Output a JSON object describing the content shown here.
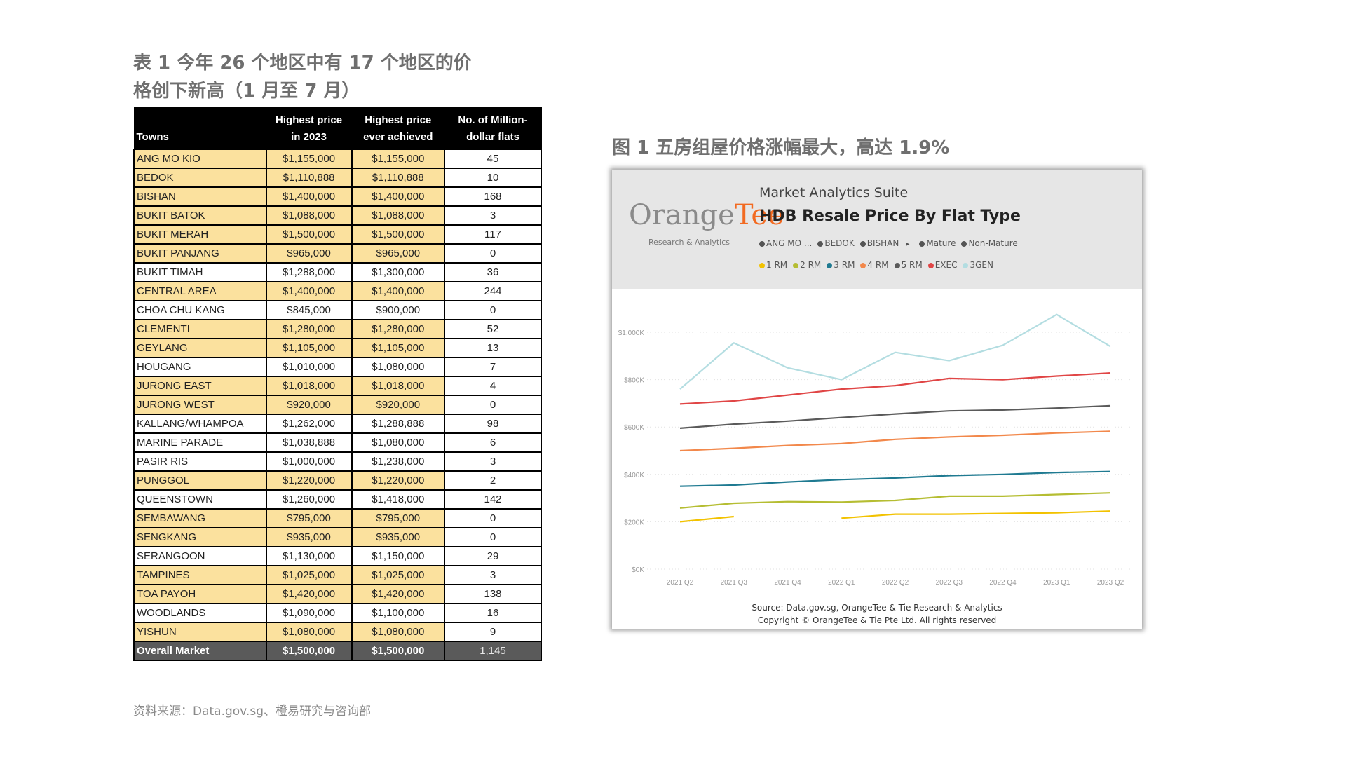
{
  "table_title": [
    "表 1 今年 26 个地区中有 17 个地区的价",
    "格创下新高（1 月至 7 月）"
  ],
  "table": {
    "headers": {
      "town": "Towns",
      "price_2023": [
        "Highest price",
        "in 2023"
      ],
      "price_ever": [
        "Highest price",
        "ever achieved"
      ],
      "million": [
        "No. of Million-",
        "dollar flats"
      ]
    },
    "rows": [
      {
        "town": "ANG MO KIO",
        "price_2023": "$1,155,000",
        "price_ever": "$1,155,000",
        "million": "45",
        "highlight": true
      },
      {
        "town": "BEDOK",
        "price_2023": "$1,110,888",
        "price_ever": "$1,110,888",
        "million": "10",
        "highlight": true
      },
      {
        "town": "BISHAN",
        "price_2023": "$1,400,000",
        "price_ever": "$1,400,000",
        "million": "168",
        "highlight": true
      },
      {
        "town": "BUKIT BATOK",
        "price_2023": "$1,088,000",
        "price_ever": "$1,088,000",
        "million": "3",
        "highlight": true
      },
      {
        "town": "BUKIT MERAH",
        "price_2023": "$1,500,000",
        "price_ever": "$1,500,000",
        "million": "117",
        "highlight": true
      },
      {
        "town": "BUKIT PANJANG",
        "price_2023": "$965,000",
        "price_ever": "$965,000",
        "million": "0",
        "highlight": true
      },
      {
        "town": "BUKIT TIMAH",
        "price_2023": "$1,288,000",
        "price_ever": "$1,300,000",
        "million": "36",
        "highlight": false
      },
      {
        "town": "CENTRAL AREA",
        "price_2023": "$1,400,000",
        "price_ever": "$1,400,000",
        "million": "244",
        "highlight": true
      },
      {
        "town": "CHOA CHU KANG",
        "price_2023": "$845,000",
        "price_ever": "$900,000",
        "million": "0",
        "highlight": false
      },
      {
        "town": "CLEMENTI",
        "price_2023": "$1,280,000",
        "price_ever": "$1,280,000",
        "million": "52",
        "highlight": true
      },
      {
        "town": "GEYLANG",
        "price_2023": "$1,105,000",
        "price_ever": "$1,105,000",
        "million": "13",
        "highlight": true
      },
      {
        "town": "HOUGANG",
        "price_2023": "$1,010,000",
        "price_ever": "$1,080,000",
        "million": "7",
        "highlight": false
      },
      {
        "town": "JURONG EAST",
        "price_2023": "$1,018,000",
        "price_ever": "$1,018,000",
        "million": "4",
        "highlight": true
      },
      {
        "town": "JURONG WEST",
        "price_2023": "$920,000",
        "price_ever": "$920,000",
        "million": "0",
        "highlight": true
      },
      {
        "town": "KALLANG/WHAMPOA",
        "price_2023": "$1,262,000",
        "price_ever": "$1,288,888",
        "million": "98",
        "highlight": false
      },
      {
        "town": "MARINE PARADE",
        "price_2023": "$1,038,888",
        "price_ever": "$1,080,000",
        "million": "6",
        "highlight": false
      },
      {
        "town": "PASIR RIS",
        "price_2023": "$1,000,000",
        "price_ever": "$1,238,000",
        "million": "3",
        "highlight": false
      },
      {
        "town": "PUNGGOL",
        "price_2023": "$1,220,000",
        "price_ever": "$1,220,000",
        "million": "2",
        "highlight": true
      },
      {
        "town": "QUEENSTOWN",
        "price_2023": "$1,260,000",
        "price_ever": "$1,418,000",
        "million": "142",
        "highlight": false
      },
      {
        "town": "SEMBAWANG",
        "price_2023": "$795,000",
        "price_ever": "$795,000",
        "million": "0",
        "highlight": true
      },
      {
        "town": "SENGKANG",
        "price_2023": "$935,000",
        "price_ever": "$935,000",
        "million": "0",
        "highlight": true
      },
      {
        "town": "SERANGOON",
        "price_2023": "$1,130,000",
        "price_ever": "$1,150,000",
        "million": "29",
        "highlight": false
      },
      {
        "town": "TAMPINES",
        "price_2023": "$1,025,000",
        "price_ever": "$1,025,000",
        "million": "3",
        "highlight": true
      },
      {
        "town": "TOA PAYOH",
        "price_2023": "$1,420,000",
        "price_ever": "$1,420,000",
        "million": "138",
        "highlight": true
      },
      {
        "town": "WOODLANDS",
        "price_2023": "$1,090,000",
        "price_ever": "$1,100,000",
        "million": "16",
        "highlight": false
      },
      {
        "town": "YISHUN",
        "price_2023": "$1,080,000",
        "price_ever": "$1,080,000",
        "million": "9",
        "highlight": true
      }
    ],
    "total": {
      "town": "Overall Market",
      "price_2023": "$1,500,000",
      "price_ever": "$1,500,000",
      "million": "1,145"
    },
    "colors": {
      "highlight": "#fbe19e",
      "header": "#000000",
      "total": "#5a5a5a"
    }
  },
  "table_source": "资料来源：Data.gov.sg、橙易研究与咨询部",
  "figure_title": "图 1 五房组屋价格涨幅最大，高达 1.9%",
  "chart_card": {
    "logo_main": "Orange",
    "logo_accent": "Tee",
    "logo_sub": "Research & Analytics",
    "suite": "Market Analytics Suite",
    "filters": [
      {
        "label": "ANG MO ...",
        "color": "#555555"
      },
      {
        "label": "BEDOK",
        "color": "#555555"
      },
      {
        "label": "BISHAN",
        "color": "#555555",
        "arrow": "▸"
      },
      {
        "label": "Mature",
        "color": "#555555"
      },
      {
        "label": "Non-Mature",
        "color": "#555555"
      }
    ],
    "source_lines": [
      "Source: Data.gov.sg, OrangeTee & Tie Research & Analytics",
      "Copyright © OrangeTee & Tie Pte Ltd. All rights reserved"
    ]
  },
  "chart_data": {
    "type": "line",
    "title": "HDB Resale Price By Flat Type",
    "x": [
      "2021 Q2",
      "2021 Q3",
      "2021 Q4",
      "2022 Q1",
      "2022 Q2",
      "2022 Q3",
      "2022 Q4",
      "2023 Q1",
      "2023 Q2"
    ],
    "yticks": [
      "$0K",
      "$200K",
      "$400K",
      "$600K",
      "$800K",
      "$1,000K"
    ],
    "ylim": [
      0,
      1000
    ],
    "grid": true,
    "legend": "top",
    "series": [
      {
        "name": "1 RM",
        "color": "#f2c200",
        "values": [
          200,
          222,
          null,
          215,
          232,
          232,
          235,
          238,
          245
        ]
      },
      {
        "name": "2 RM",
        "color": "#b5bd32",
        "values": [
          258,
          278,
          285,
          283,
          290,
          308,
          308,
          315,
          322
        ]
      },
      {
        "name": "3 RM",
        "color": "#1f7a91",
        "values": [
          350,
          355,
          368,
          378,
          385,
          395,
          400,
          408,
          412
        ]
      },
      {
        "name": "4 RM",
        "color": "#f2884b",
        "values": [
          500,
          510,
          522,
          530,
          548,
          558,
          565,
          575,
          582
        ]
      },
      {
        "name": "5 RM",
        "color": "#5a5a5a",
        "values": [
          595,
          612,
          625,
          640,
          655,
          668,
          672,
          680,
          690
        ]
      },
      {
        "name": "EXEC",
        "color": "#e04545",
        "values": [
          697,
          710,
          735,
          760,
          775,
          805,
          800,
          815,
          828
        ]
      },
      {
        "name": "3GEN",
        "color": "#b3dde1",
        "values": [
          760,
          955,
          850,
          800,
          915,
          880,
          945,
          1075,
          940
        ]
      }
    ]
  }
}
